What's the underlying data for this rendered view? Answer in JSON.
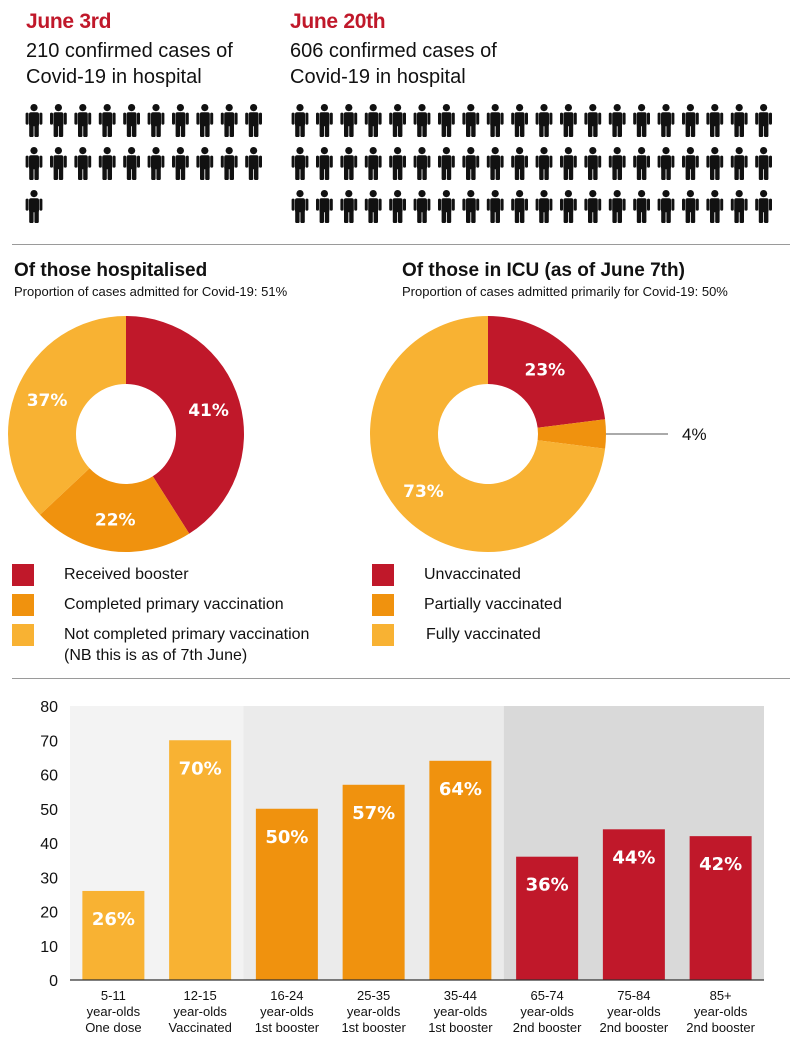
{
  "top": {
    "left": {
      "date": "June 3rd",
      "line1": "210 confirmed cases of",
      "line2": "Covid-19 in hospital",
      "icon_count": 21
    },
    "right": {
      "date": "June 20th",
      "line1": "606 confirmed cases of",
      "line2": "Covid-19 in hospital",
      "icon_count": 60
    },
    "icon": "person-icon"
  },
  "colors": {
    "red": "#c0182a",
    "orange": "#f0920e",
    "yellow": "#f8b233",
    "bg_light": "#ebebeb",
    "bg_dark": "#d9d9d9"
  },
  "chart_data": [
    {
      "type": "pie",
      "title": "Of those hospitalised",
      "subtitle": "Proportion of cases admitted for Covid-19: 51%",
      "labels": [
        "Received booster",
        "Completed primary vaccination",
        "Not completed primary vaccination"
      ],
      "values": [
        41,
        22,
        37
      ],
      "value_labels": [
        "41%",
        "22%",
        "37%"
      ]
    },
    {
      "type": "pie",
      "title": "Of those in ICU (as of June 7th)",
      "subtitle": "Proportion of cases admitted primarily for Covid-19: 50%",
      "labels": [
        "Unvaccinated",
        "Partially vaccinated",
        "Fully vaccinated"
      ],
      "values": [
        23,
        4,
        73
      ],
      "value_labels": [
        "23%",
        "4%",
        "73%"
      ]
    },
    {
      "type": "bar",
      "categories": [
        [
          "5-11",
          "year-olds",
          "One dose"
        ],
        [
          "12-15",
          "year-olds",
          "Vaccinated"
        ],
        [
          "16-24",
          "year-olds",
          "1st booster"
        ],
        [
          "25-35",
          "year-olds",
          "1st booster"
        ],
        [
          "35-44",
          "year-olds",
          "1st booster"
        ],
        [
          "65-74",
          "year-olds",
          "2nd booster"
        ],
        [
          "75-84",
          "year-olds",
          "2nd booster"
        ],
        [
          "85+",
          "year-olds",
          "2nd booster"
        ]
      ],
      "values": [
        26,
        70,
        50,
        57,
        64,
        36,
        44,
        42
      ],
      "value_labels": [
        "26%",
        "70%",
        "50%",
        "57%",
        "64%",
        "36%",
        "44%",
        "42%"
      ],
      "ylim": [
        0,
        80
      ],
      "yticks": [
        "0",
        "10",
        "20",
        "30",
        "40",
        "50",
        "60",
        "70",
        "80"
      ],
      "bar_groups": [
        "yellow",
        "yellow",
        "orange",
        "orange",
        "orange",
        "red",
        "red",
        "red"
      ],
      "title": "",
      "xlabel": "",
      "ylabel": ""
    }
  ],
  "legends": {
    "hospital": [
      "Received booster",
      "Completed primary vaccination",
      "Not completed primary vaccination",
      "(NB this is as of 7th June)"
    ],
    "icu": [
      "Unvaccinated",
      "Partially vaccinated",
      "Fully vaccinated"
    ]
  }
}
